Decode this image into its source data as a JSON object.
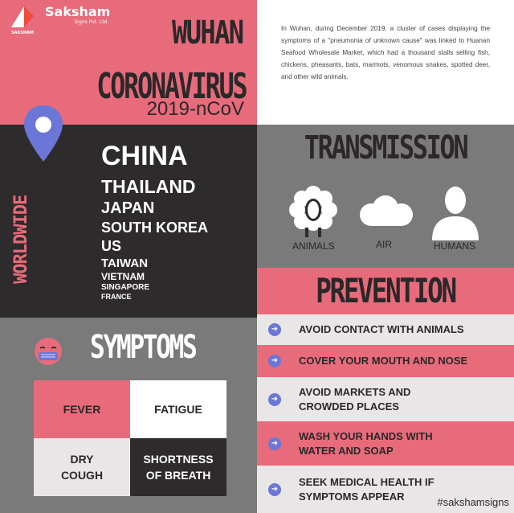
{
  "logo": {
    "title": "Saksham",
    "subtitle": "Signs Pvt. Ltd.",
    "mark_text": "SAKSHAM"
  },
  "header": {
    "line1": "WUHAN",
    "line2": "CORONAVIRUS",
    "line3": "2019-nCoV"
  },
  "intro_text": "In Wuhan, during December 2019, a cluster of cases displaying the symptoms of a \"pneumonia of unknown cause\" was linked to Huanan Seafood Wholesale Market, which had a thousand stalls selling fish, chickens, pheasants, bats, marmots, venomous snakes, spotted deer, and other wild animals.",
  "worldwide": {
    "label": "WORLDWIDE",
    "countries": [
      "CHINA",
      "THAILAND",
      "JAPAN",
      "SOUTH KOREA",
      "US",
      "TAIWAN",
      "VIETNAM",
      "SINGAPORE",
      "FRANCE"
    ]
  },
  "transmission": {
    "title": "TRANSMISSION",
    "items": [
      {
        "label": "ANIMALS",
        "icon": "sheep-icon"
      },
      {
        "label": "AIR",
        "icon": "cloud-icon"
      },
      {
        "label": "HUMANS",
        "icon": "person-icon"
      }
    ]
  },
  "prevention": {
    "title": "PREVENTION",
    "items": [
      "AVOID CONTACT WITH ANIMALS",
      "COVER YOUR MOUTH AND NOSE",
      "AVOID MARKETS AND CROWDED PLACES",
      "WASH YOUR HANDS WITH WATER AND SOAP",
      "SEEK MEDICAL HEALTH IF SYMPTOMS APPEAR"
    ]
  },
  "symptoms": {
    "title": "SYMPTOMS",
    "items": [
      "FEVER",
      "FATIGUE",
      "DRY COUGH",
      "SHORTNESS OF BREATH"
    ]
  },
  "hashtag": "#sakshamsigns",
  "colors": {
    "pink": "#e86b7b",
    "dark": "#2d2b2c",
    "gray": "#7a7a7a",
    "light": "#e8e6e6",
    "blue": "#6b76d6"
  }
}
